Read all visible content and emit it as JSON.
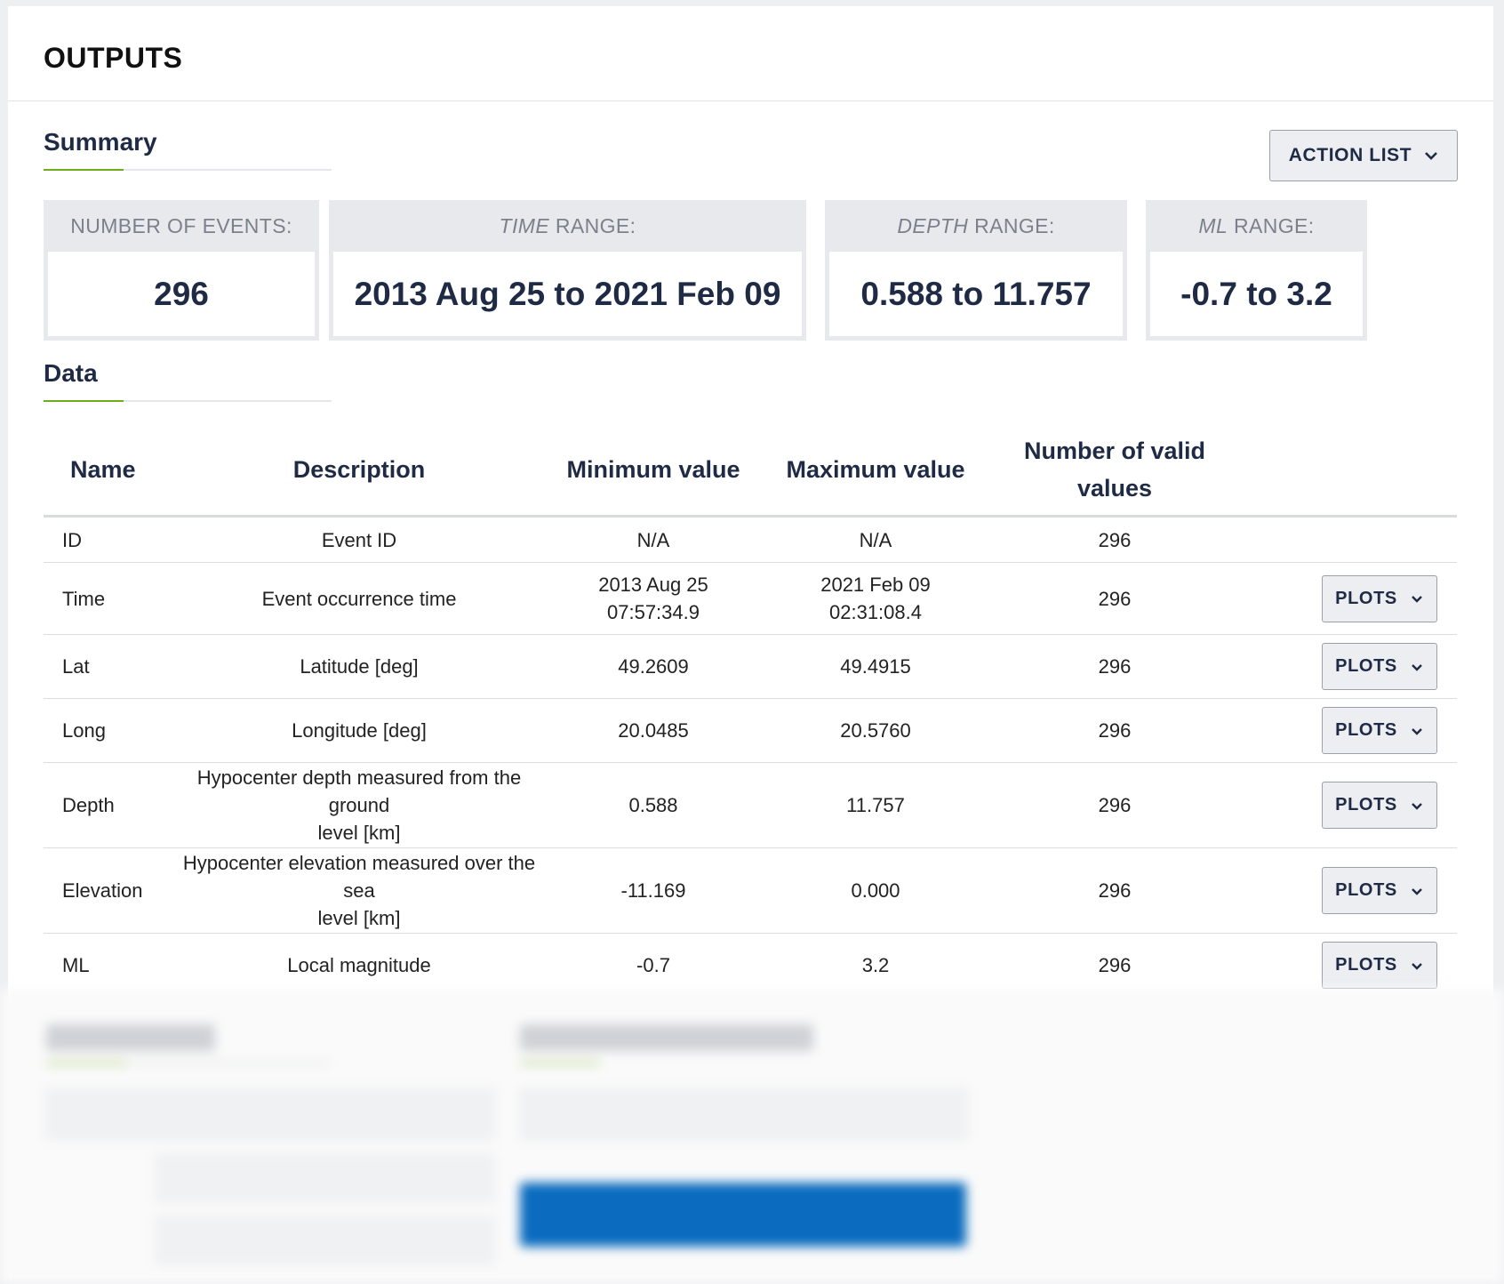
{
  "header": {
    "title": "OUTPUTS"
  },
  "summary": {
    "title": "Summary",
    "action_list_label": "ACTION LIST",
    "stats": [
      {
        "label_em": "",
        "label_rest": "NUMBER OF EVENTS:",
        "value": "296"
      },
      {
        "label_em": "TIME",
        "label_rest": " RANGE:",
        "value": "2013 Aug 25 to 2021 Feb 09"
      },
      {
        "label_em": "DEPTH",
        "label_rest": " RANGE:",
        "value": "0.588 to 11.757"
      },
      {
        "label_em": "ML",
        "label_rest": " RANGE:",
        "value": "-0.7 to 3.2"
      }
    ]
  },
  "data": {
    "title": "Data",
    "columns": {
      "name": "Name",
      "description": "Description",
      "min": "Minimum value",
      "max": "Maximum value",
      "count_line1": "Number of valid",
      "count_line2": "values"
    },
    "plots_label": "PLOTS",
    "rows": [
      {
        "name": "ID",
        "description": "Event ID",
        "description2": "",
        "min": "N/A",
        "min2": "",
        "max": "N/A",
        "max2": "",
        "count": "296",
        "has_plots": false
      },
      {
        "name": "Time",
        "description": "Event occurrence time",
        "description2": "",
        "min": "2013 Aug 25",
        "min2": "07:57:34.9",
        "max": "2021 Feb 09",
        "max2": "02:31:08.4",
        "count": "296",
        "has_plots": true
      },
      {
        "name": "Lat",
        "description": "Latitude [deg]",
        "description2": "",
        "min": "49.2609",
        "min2": "",
        "max": "49.4915",
        "max2": "",
        "count": "296",
        "has_plots": true
      },
      {
        "name": "Long",
        "description": "Longitude [deg]",
        "description2": "",
        "min": "20.0485",
        "min2": "",
        "max": "20.5760",
        "max2": "",
        "count": "296",
        "has_plots": true
      },
      {
        "name": "Depth",
        "description": "Hypocenter depth measured from the ground",
        "description2": "level [km]",
        "min": "0.588",
        "min2": "",
        "max": "11.757",
        "max2": "",
        "count": "296",
        "has_plots": true
      },
      {
        "name": "Elevation",
        "description": "Hypocenter elevation measured over the sea",
        "description2": "level [km]",
        "min": "-11.169",
        "min2": "",
        "max": "0.000",
        "max2": "",
        "count": "296",
        "has_plots": true
      },
      {
        "name": "ML",
        "description": "Local magnitude",
        "description2": "",
        "min": "-0.7",
        "min2": "",
        "max": "3.2",
        "max2": "",
        "count": "296",
        "has_plots": true
      }
    ]
  },
  "colors": {
    "accent": "#6cae1a",
    "primary_button": "#0a6bbf",
    "text": "#1f2a44"
  }
}
